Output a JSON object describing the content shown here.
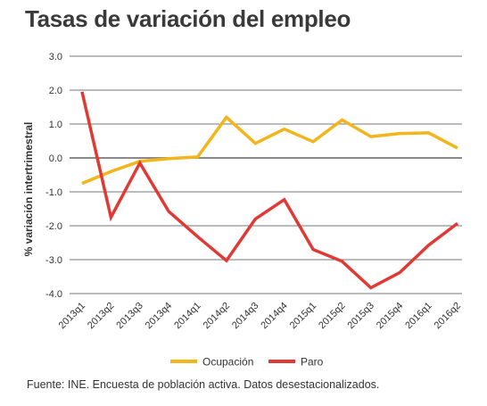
{
  "title": "Tasas de variación del empleo",
  "source": "Fuente: INE. Encuesta de población activa. Datos desestacionalizados.",
  "colors": {
    "ocupacion": "#f2b51b",
    "paro": "#e03a36",
    "grid": "#4a4a4a",
    "zero": "#8a8a8a"
  },
  "chart_data": {
    "type": "line",
    "title": "Tasas de variación del empleo",
    "ylabel": "% variación intertrimestral",
    "xlabel": "",
    "ylim": [
      -4.0,
      3.0
    ],
    "yticks": [
      "3.0",
      "2.0",
      "1.0",
      "0.0",
      "-1.0",
      "-2.0",
      "-3.0",
      "-4.0"
    ],
    "ytick_values": [
      3,
      2,
      1,
      0,
      -1,
      -2,
      -3,
      -4
    ],
    "grid": true,
    "legend": "bottom-center",
    "categories": [
      "2013q1",
      "2013q2",
      "2013q3",
      "2013q4",
      "2014q1",
      "2014q2",
      "2014q3",
      "2014q4",
      "2015q1",
      "2015q2",
      "2015q3",
      "2015q4",
      "2016q1",
      "2016q2"
    ],
    "series": [
      {
        "name": "Ocupación",
        "color": "#f2b51b",
        "values": [
          -0.75,
          -0.4,
          -0.1,
          -0.02,
          0.03,
          1.2,
          0.43,
          0.85,
          0.48,
          1.12,
          0.63,
          0.72,
          0.74,
          0.29
        ]
      },
      {
        "name": "Paro",
        "color": "#e03a36",
        "values": [
          1.95,
          -1.75,
          -0.15,
          -1.58,
          -2.32,
          -3.03,
          -1.8,
          -1.23,
          -2.7,
          -3.05,
          -3.83,
          -3.38,
          -2.57,
          -1.93
        ]
      }
    ]
  }
}
